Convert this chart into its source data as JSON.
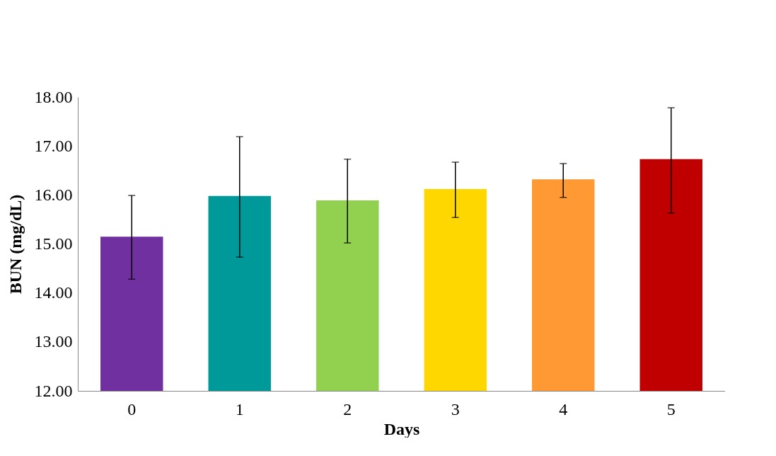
{
  "chart_data": {
    "type": "bar",
    "xlabel": "Days",
    "ylabel": "BUN (mg/dL)",
    "categories": [
      "0",
      "1",
      "2",
      "3",
      "4",
      "5"
    ],
    "values": [
      15.15,
      15.98,
      15.89,
      16.12,
      16.32,
      16.73
    ],
    "colors": [
      "#7030a0",
      "#009999",
      "#92d050",
      "#ffd700",
      "#ff9933",
      "#c00000"
    ],
    "errors": [
      [
        14.28,
        15.99
      ],
      [
        14.73,
        17.19
      ],
      [
        15.02,
        16.73
      ],
      [
        15.54,
        16.67
      ],
      [
        15.95,
        16.64
      ],
      [
        15.63,
        17.78
      ]
    ],
    "ylim": [
      12,
      18
    ],
    "yticks": [
      {
        "value": 12,
        "label": "12.00"
      },
      {
        "value": 13,
        "label": "13.00"
      },
      {
        "value": 14,
        "label": "14.00"
      },
      {
        "value": 15,
        "label": "15.00"
      },
      {
        "value": 16,
        "label": "16.00"
      },
      {
        "value": 17,
        "label": "17.00"
      },
      {
        "value": 18,
        "label": "18.00"
      }
    ],
    "grid": false
  }
}
